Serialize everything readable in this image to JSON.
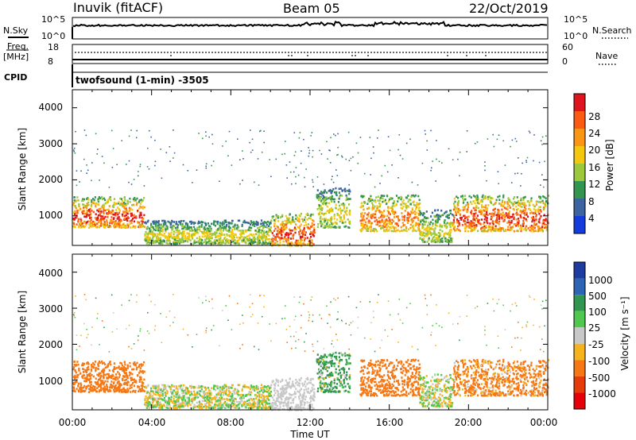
{
  "header": {
    "station": "Inuvik (fitACF)",
    "beam": "Beam 05",
    "date": "22/Oct/2019"
  },
  "strip": {
    "nsky_label": "N.Sky",
    "nsearch_label": "N.Search",
    "nsky_ticks": [
      "10^5",
      "10^0"
    ],
    "nsearch_ticks": [
      "10^5",
      "10^0"
    ],
    "freq_label": "Freq.",
    "freq_unit": "[MHz]",
    "freq_ticks": [
      "18",
      "8"
    ],
    "nave_label": "Nave",
    "nave_ticks": [
      "60",
      "0"
    ],
    "cpid_label": "CPID",
    "cpid_text": "twofsound (1-min) -3505"
  },
  "axes": {
    "ylabel": "Slant Range [km]",
    "y_ticks": [
      "4000",
      "3000",
      "2000",
      "1000"
    ],
    "x_ticks": [
      "00:00",
      "04:00",
      "08:00",
      "12:00",
      "16:00",
      "20:00",
      "00:00"
    ],
    "xlabel": "Time UT"
  },
  "colorbars": {
    "power": {
      "label": "Power [dB]",
      "ticks": [
        "28",
        "24",
        "20",
        "16",
        "12",
        "8",
        "4"
      ],
      "colors": [
        "#e0141e",
        "#fa5a14",
        "#fa9614",
        "#f5c80f",
        "#9bc83c",
        "#329650",
        "#3c64a0",
        "#143cdc"
      ]
    },
    "velocity": {
      "label": "Velocity [m s⁻¹]",
      "ticks": [
        "1000",
        "500",
        "100",
        "25",
        "-25",
        "-100",
        "-500",
        "-1000"
      ],
      "colors": [
        "#1e3ca0",
        "#2d64b4",
        "#329650",
        "#50c850",
        "#c8c8c8",
        "#f5b41e",
        "#f57814",
        "#e63c0a",
        "#e6000a"
      ]
    }
  },
  "chart_data": [
    {
      "type": "heatmap",
      "title": "Power [dB]",
      "xlabel": "Time UT",
      "ylabel": "Slant Range [km]",
      "xlim": [
        0,
        24
      ],
      "ylim": [
        180,
        4500
      ],
      "zlim": [
        0,
        30
      ],
      "x_ticks": [
        "00:00",
        "04:00",
        "08:00",
        "12:00",
        "16:00",
        "20:00",
        "00:00"
      ],
      "y_ticks": [
        1000,
        2000,
        3000,
        4000
      ],
      "scatter_regions": [
        {
          "t": [
            0.0,
            3.6
          ],
          "range_km": [
            700,
            1550
          ],
          "power_db": [
            8,
            28
          ]
        },
        {
          "t": [
            3.6,
            10.0
          ],
          "range_km": [
            250,
            900
          ],
          "power_db": [
            4,
            16
          ]
        },
        {
          "t": [
            10.0,
            12.2
          ],
          "range_km": [
            200,
            1100
          ],
          "power_db": [
            8,
            28
          ]
        },
        {
          "t": [
            12.3,
            14.0
          ],
          "range_km": [
            700,
            1800
          ],
          "power_db": [
            4,
            16
          ]
        },
        {
          "t": [
            14.5,
            17.5
          ],
          "range_km": [
            600,
            1600
          ],
          "power_db": [
            8,
            24
          ]
        },
        {
          "t": [
            17.5,
            19.2
          ],
          "range_km": [
            300,
            1200
          ],
          "power_db": [
            4,
            16
          ]
        },
        {
          "t": [
            19.2,
            24.0
          ],
          "range_km": [
            600,
            1600
          ],
          "power_db": [
            8,
            28
          ]
        }
      ]
    },
    {
      "type": "heatmap",
      "title": "Velocity [m s⁻¹]",
      "xlabel": "Time UT",
      "ylabel": "Slant Range [km]",
      "xlim": [
        0,
        24
      ],
      "ylim": [
        180,
        4500
      ],
      "zlim": [
        -1000,
        1000
      ],
      "x_ticks": [
        "00:00",
        "04:00",
        "08:00",
        "12:00",
        "16:00",
        "20:00",
        "00:00"
      ],
      "y_ticks": [
        1000,
        2000,
        3000,
        4000
      ],
      "scatter_regions": [
        {
          "t": [
            0.0,
            3.6
          ],
          "range_km": [
            700,
            1550
          ],
          "velocity_ms": [
            -500,
            -100
          ]
        },
        {
          "t": [
            3.6,
            10.0
          ],
          "range_km": [
            250,
            900
          ],
          "velocity_ms": [
            -100,
            100
          ]
        },
        {
          "t": [
            10.0,
            12.2
          ],
          "range_km": [
            200,
            1100
          ],
          "velocity_ms": [
            -25,
            25
          ]
        },
        {
          "t": [
            12.3,
            14.0
          ],
          "range_km": [
            700,
            1800
          ],
          "velocity_ms": [
            -100,
            500
          ]
        },
        {
          "t": [
            14.5,
            17.5
          ],
          "range_km": [
            600,
            1600
          ],
          "velocity_ms": [
            -500,
            -100
          ]
        },
        {
          "t": [
            17.5,
            19.2
          ],
          "range_km": [
            300,
            1200
          ],
          "velocity_ms": [
            -100,
            100
          ]
        },
        {
          "t": [
            19.2,
            24.0
          ],
          "range_km": [
            600,
            1600
          ],
          "velocity_ms": [
            -500,
            25
          ]
        }
      ]
    }
  ]
}
